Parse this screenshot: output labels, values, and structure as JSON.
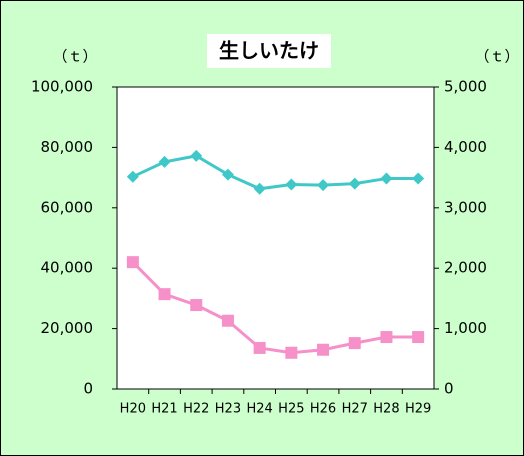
{
  "chart_data": {
    "type": "line",
    "title": "生しいたけ",
    "y_label": "（ｔ）",
    "y2_label": "（ｔ）",
    "categories": [
      "H20",
      "H21",
      "H22",
      "H23",
      "H24",
      "H25",
      "H26",
      "H27",
      "H28",
      "H29"
    ],
    "series": [
      {
        "color": "#40c8c8",
        "marker": "diamond",
        "values": [
          70300,
          75200,
          77200,
          71000,
          66300,
          67700,
          67500,
          68000,
          69700,
          69700
        ]
      },
      {
        "color": "#f590c8",
        "marker": "square",
        "axis": "y2",
        "values": [
          2100,
          1570,
          1390,
          1130,
          680,
          600,
          650,
          760,
          860,
          860
        ]
      }
    ],
    "ylim": [
      0,
      100000
    ],
    "yticks": [
      0,
      {
        "value": 20000,
        "label": "20,000"
      },
      {
        "value": 40000,
        "label": "40,000"
      },
      {
        "value": 60000,
        "label": "60,000"
      },
      {
        "value": 80000,
        "label": "80,000"
      },
      {
        "value": 100000,
        "label": "100,000"
      }
    ],
    "y2lim": [
      0,
      5000
    ],
    "y2ticks": [
      0,
      {
        "value": 1000,
        "label": "1,000"
      },
      {
        "value": 2000,
        "label": "2,000"
      },
      {
        "value": 3000,
        "label": "3,000"
      },
      {
        "value": 4000,
        "label": "4,000"
      },
      {
        "value": 5000,
        "label": "5,000"
      }
    ]
  }
}
